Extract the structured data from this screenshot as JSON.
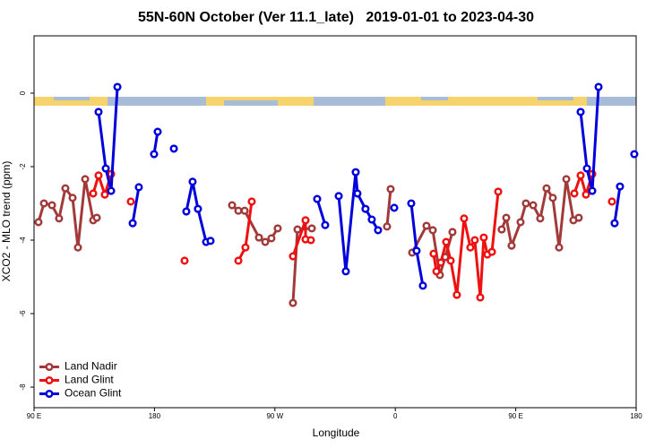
{
  "chart_data": {
    "type": "line",
    "title": "55N-60N October (Ver 11.1_late)   2019-01-01 to 2023-04-30",
    "x_label": "Longitude",
    "y_label": "XCO2 - MLO trend (ppm)",
    "xlim": [
      90,
      540
    ],
    "ylim": [
      -8.56,
      1.56
    ],
    "xticks": [
      {
        "value": 90,
        "label": "90 E"
      },
      {
        "value": 180,
        "label": "180"
      },
      {
        "value": 270,
        "label": "90 W"
      },
      {
        "value": 360,
        "label": "0"
      },
      {
        "value": 450,
        "label": "90 E"
      },
      {
        "value": 540,
        "label": "180"
      }
    ],
    "yticks": [
      0,
      -2,
      -4,
      -6,
      -8
    ],
    "grid": false,
    "legend": "bottomleft",
    "series": [
      {
        "name": "Land Nadir",
        "color": "#a33a3a",
        "x": [
          93.3,
          97.4,
          103.4,
          108.7,
          113.4,
          118.8,
          122.8,
          128.2,
          134.2,
          136.9,
          null,
          238.0,
          242.7,
          247.4,
          258.1,
          262.8,
          267.4,
          272.1,
          null,
          283.5,
          286.9,
          297.6,
          null,
          353.8,
          356.5,
          null,
          372.6,
          383.3,
          388.0,
          393.3,
          397.3,
          402.7,
          null,
          439.5,
          442.9,
          446.9,
          453.6,
          457.6,
          463.0,
          468.3,
          473.0,
          477.7,
          482.4,
          487.8,
          493.1,
          497.1
        ],
        "values": [
          -3.51,
          -3.0,
          -3.05,
          -3.41,
          -2.59,
          -2.85,
          -4.2,
          -2.34,
          -3.46,
          -3.39,
          null,
          -3.05,
          -3.2,
          -3.2,
          -3.93,
          -4.05,
          -3.95,
          -3.68,
          null,
          -5.71,
          -3.71,
          -3.68,
          null,
          -3.63,
          -2.61,
          null,
          -4.34,
          -3.61,
          -3.73,
          -4.95,
          -4.46,
          -3.78,
          null,
          -3.71,
          -3.39,
          -4.15,
          -3.51,
          -3.0,
          -3.05,
          -3.41,
          -2.59,
          -2.85,
          -4.2,
          -2.34,
          -3.46,
          -3.39
        ]
      },
      {
        "name": "Land Glint",
        "color": "#ee1111",
        "x": [
          134.2,
          138.2,
          142.9,
          147.6,
          null,
          162.3,
          null,
          202.5,
          null,
          242.7,
          248.0,
          252.7,
          null,
          283.5,
          292.9,
          292.9,
          296.9,
          null,
          388.6,
          390.7,
          394.0,
          398.0,
          401.4,
          406.0,
          411.4,
          416.1,
          419.4,
          423.5,
          426.1,
          428.8,
          432.2,
          436.9,
          null,
          493.8,
          498.5,
          502.5,
          507.2,
          null,
          521.9
        ],
        "values": [
          -2.73,
          -2.24,
          -2.76,
          -2.2,
          null,
          -2.95,
          null,
          -4.56,
          null,
          -4.56,
          -4.2,
          -2.95,
          null,
          -4.44,
          -3.46,
          -3.98,
          -4.0,
          null,
          -4.37,
          -4.85,
          -4.61,
          -4.05,
          -4.56,
          -5.49,
          -3.41,
          -4.2,
          -4.0,
          -5.56,
          -3.93,
          -4.39,
          -4.32,
          -2.68,
          null,
          -2.73,
          -2.24,
          -2.76,
          -2.2,
          null,
          -2.95
        ]
      },
      {
        "name": "Ocean Glint",
        "color": "#0000dd",
        "x": [
          138.2,
          143.6,
          147.6,
          152.3,
          null,
          163.7,
          168.3,
          null,
          179.7,
          182.4,
          null,
          194.5,
          null,
          203.8,
          208.5,
          212.5,
          218.6,
          221.9,
          null,
          301.6,
          307.6,
          null,
          317.7,
          323.0,
          330.4,
          331.7,
          337.7,
          342.4,
          347.1,
          null,
          359.2,
          null,
          371.9,
          375.9,
          380.6,
          null,
          498.5,
          503.2,
          507.2,
          511.9,
          null,
          523.9,
          527.9,
          null,
          538.6
        ],
        "values": [
          -0.51,
          -2.05,
          -2.66,
          0.17,
          null,
          -3.54,
          -2.56,
          null,
          -1.66,
          -1.05,
          null,
          -1.51,
          null,
          -3.22,
          -2.41,
          -3.15,
          -4.05,
          -4.02,
          null,
          -2.88,
          -3.59,
          null,
          -2.8,
          -4.85,
          -2.15,
          -2.73,
          -3.15,
          -3.44,
          -3.73,
          null,
          -3.12,
          null,
          -3.0,
          -4.29,
          -5.24,
          null,
          -0.51,
          -2.05,
          -2.66,
          0.17,
          null,
          -3.54,
          -2.54,
          null,
          -1.66
        ]
      }
    ]
  }
}
